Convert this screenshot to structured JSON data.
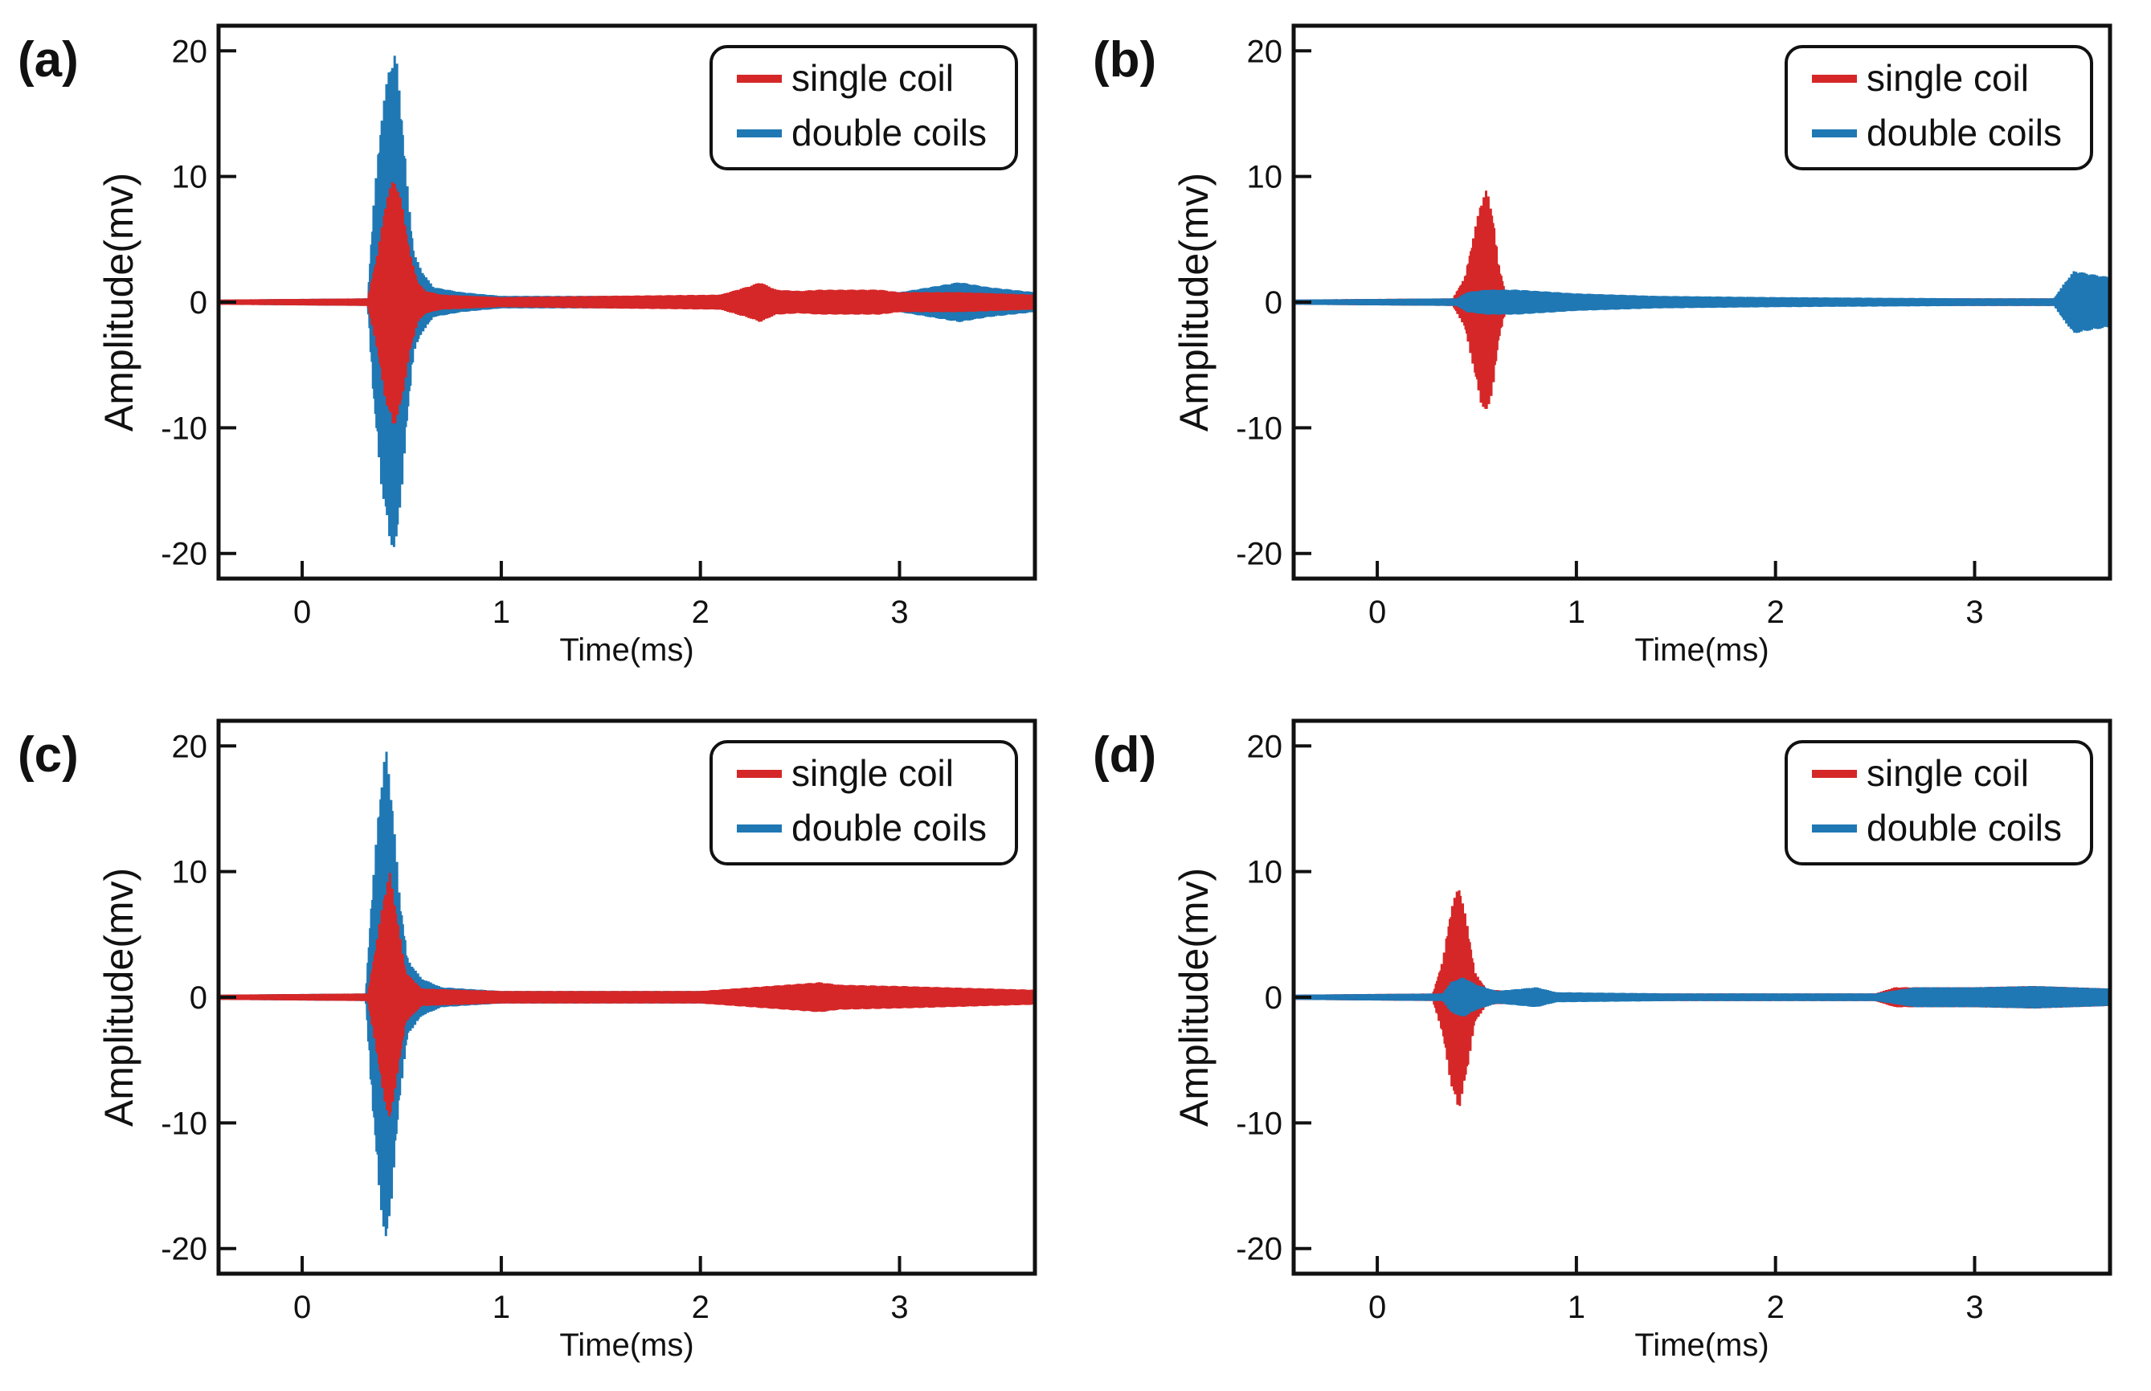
{
  "figure": {
    "panels": [
      {
        "label": "(a)"
      },
      {
        "label": "(b)"
      },
      {
        "label": "(c)"
      },
      {
        "label": "(d)"
      }
    ]
  },
  "chart_data": [
    {
      "type": "line",
      "panel": "(a)",
      "xlabel": "Time(ms)",
      "ylabel": "Amplitude(mv)",
      "xlim": [
        -0.42,
        3.68
      ],
      "ylim": [
        -22,
        22
      ],
      "xticks": [
        "0",
        "1",
        "2",
        "3"
      ],
      "yticks": [
        "20",
        "10",
        "0",
        "-10",
        "-20"
      ],
      "xtick_values": [
        0,
        1,
        2,
        3
      ],
      "ytick_values": [
        20,
        10,
        0,
        -10,
        -20
      ],
      "legend": {
        "position": "top-right",
        "entries": [
          "single coil",
          "double coils"
        ]
      },
      "series": [
        {
          "name": "single coil",
          "color": "#d62728",
          "order": 2,
          "envelope": [
            [
              -0.42,
              0.2
            ],
            [
              0.33,
              0.3
            ],
            [
              0.38,
              4
            ],
            [
              0.42,
              8
            ],
            [
              0.46,
              10
            ],
            [
              0.5,
              8
            ],
            [
              0.54,
              4
            ],
            [
              0.58,
              1.6
            ],
            [
              0.62,
              0.9
            ],
            [
              0.7,
              0.6
            ],
            [
              1.0,
              0.4
            ],
            [
              1.5,
              0.5
            ],
            [
              2.1,
              0.6
            ],
            [
              2.25,
              1.3
            ],
            [
              2.3,
              1.6
            ],
            [
              2.38,
              1.0
            ],
            [
              2.5,
              0.9
            ],
            [
              2.6,
              1.0
            ],
            [
              2.9,
              1.0
            ],
            [
              3.0,
              0.8
            ],
            [
              3.3,
              0.8
            ],
            [
              3.68,
              0.6
            ]
          ]
        },
        {
          "name": "double coils",
          "color": "#1f77b4",
          "order": 1,
          "envelope": [
            [
              -0.42,
              0.2
            ],
            [
              0.33,
              0.3
            ],
            [
              0.36,
              8
            ],
            [
              0.4,
              15
            ],
            [
              0.44,
              19
            ],
            [
              0.47,
              20
            ],
            [
              0.5,
              15
            ],
            [
              0.53,
              9
            ],
            [
              0.56,
              4
            ],
            [
              0.6,
              2.5
            ],
            [
              0.66,
              1.2
            ],
            [
              0.8,
              0.8
            ],
            [
              1.0,
              0.5
            ],
            [
              2.0,
              0.5
            ],
            [
              2.3,
              0.8
            ],
            [
              3.0,
              0.8
            ],
            [
              3.15,
              1.2
            ],
            [
              3.3,
              1.6
            ],
            [
              3.45,
              1.2
            ],
            [
              3.68,
              0.8
            ]
          ]
        }
      ]
    },
    {
      "type": "line",
      "panel": "(b)",
      "xlabel": "Time(ms)",
      "ylabel": "Amplitude(mv)",
      "xlim": [
        -0.42,
        3.68
      ],
      "ylim": [
        -22,
        22
      ],
      "xticks": [
        "0",
        "1",
        "2",
        "3"
      ],
      "yticks": [
        "20",
        "10",
        "0",
        "-10",
        "-20"
      ],
      "xtick_values": [
        0,
        1,
        2,
        3
      ],
      "ytick_values": [
        20,
        10,
        0,
        -10,
        -20
      ],
      "legend": {
        "position": "top-right",
        "entries": [
          "single coil",
          "double coils"
        ]
      },
      "series": [
        {
          "name": "single coil",
          "color": "#d62728",
          "order": 1,
          "envelope": [
            [
              -0.42,
              0.2
            ],
            [
              0.38,
              0.3
            ],
            [
              0.44,
              2
            ],
            [
              0.48,
              5
            ],
            [
              0.52,
              8
            ],
            [
              0.55,
              9
            ],
            [
              0.58,
              7
            ],
            [
              0.61,
              3
            ],
            [
              0.64,
              1
            ],
            [
              0.7,
              0.5
            ],
            [
              1.0,
              0.3
            ],
            [
              2.0,
              0.3
            ],
            [
              3.68,
              0.3
            ]
          ]
        },
        {
          "name": "double coils",
          "color": "#1f77b4",
          "order": 2,
          "envelope": [
            [
              -0.42,
              0.2
            ],
            [
              0.4,
              0.3
            ],
            [
              0.45,
              0.8
            ],
            [
              0.55,
              1.0
            ],
            [
              0.7,
              1.0
            ],
            [
              1.0,
              0.7
            ],
            [
              1.4,
              0.5
            ],
            [
              2.0,
              0.4
            ],
            [
              3.0,
              0.3
            ],
            [
              3.4,
              0.3
            ],
            [
              3.45,
              1.5
            ],
            [
              3.5,
              2.5
            ],
            [
              3.6,
              2.2
            ],
            [
              3.68,
              2.0
            ]
          ]
        }
      ]
    },
    {
      "type": "line",
      "panel": "(c)",
      "xlabel": "Time(ms)",
      "ylabel": "Amplitude(mv)",
      "xlim": [
        -0.42,
        3.68
      ],
      "ylim": [
        -22,
        22
      ],
      "xticks": [
        "0",
        "1",
        "2",
        "3"
      ],
      "yticks": [
        "20",
        "10",
        "0",
        "-10",
        "-20"
      ],
      "xtick_values": [
        0,
        1,
        2,
        3
      ],
      "ytick_values": [
        20,
        10,
        0,
        -10,
        -20
      ],
      "legend": {
        "position": "top-right",
        "entries": [
          "single coil",
          "double coils"
        ]
      },
      "series": [
        {
          "name": "single coil",
          "color": "#d62728",
          "order": 2,
          "envelope": [
            [
              -0.42,
              0.2
            ],
            [
              0.33,
              0.3
            ],
            [
              0.37,
              4
            ],
            [
              0.41,
              8
            ],
            [
              0.44,
              10
            ],
            [
              0.48,
              6
            ],
            [
              0.52,
              2
            ],
            [
              0.6,
              0.7
            ],
            [
              1.0,
              0.5
            ],
            [
              2.0,
              0.5
            ],
            [
              2.6,
              1.2
            ],
            [
              2.7,
              1.0
            ],
            [
              3.0,
              0.9
            ],
            [
              3.68,
              0.6
            ]
          ]
        },
        {
          "name": "double coils",
          "color": "#1f77b4",
          "order": 1,
          "envelope": [
            [
              -0.42,
              0.2
            ],
            [
              0.32,
              0.3
            ],
            [
              0.35,
              8
            ],
            [
              0.39,
              16
            ],
            [
              0.42,
              20
            ],
            [
              0.45,
              16
            ],
            [
              0.49,
              8
            ],
            [
              0.53,
              3
            ],
            [
              0.6,
              1.5
            ],
            [
              0.7,
              0.8
            ],
            [
              1.0,
              0.5
            ],
            [
              3.0,
              0.5
            ],
            [
              3.68,
              0.5
            ]
          ]
        }
      ]
    },
    {
      "type": "line",
      "panel": "(d)",
      "xlabel": "Time(ms)",
      "ylabel": "Amplitude(mv)",
      "xlim": [
        -0.42,
        3.68
      ],
      "ylim": [
        -22,
        22
      ],
      "xticks": [
        "0",
        "1",
        "2",
        "3"
      ],
      "yticks": [
        "20",
        "10",
        "0",
        "-10",
        "-20"
      ],
      "xtick_values": [
        0,
        1,
        2,
        3
      ],
      "ytick_values": [
        20,
        10,
        0,
        -10,
        -20
      ],
      "legend": {
        "position": "top-right",
        "entries": [
          "single coil",
          "double coils"
        ]
      },
      "series": [
        {
          "name": "single coil",
          "color": "#d62728",
          "order": 1,
          "envelope": [
            [
              -0.42,
              0.2
            ],
            [
              0.28,
              0.3
            ],
            [
              0.33,
              3
            ],
            [
              0.37,
              7
            ],
            [
              0.41,
              9
            ],
            [
              0.45,
              6
            ],
            [
              0.49,
              2
            ],
            [
              0.55,
              0.6
            ],
            [
              1.0,
              0.3
            ],
            [
              2.5,
              0.3
            ],
            [
              2.6,
              0.8
            ],
            [
              3.0,
              0.8
            ],
            [
              3.3,
              0.9
            ],
            [
              3.68,
              0.7
            ]
          ]
        },
        {
          "name": "double coils",
          "color": "#1f77b4",
          "order": 2,
          "envelope": [
            [
              -0.42,
              0.2
            ],
            [
              0.33,
              0.3
            ],
            [
              0.37,
              1.2
            ],
            [
              0.43,
              1.6
            ],
            [
              0.5,
              1.0
            ],
            [
              0.6,
              0.5
            ],
            [
              0.8,
              0.8
            ],
            [
              0.9,
              0.4
            ],
            [
              1.5,
              0.3
            ],
            [
              2.5,
              0.3
            ],
            [
              2.7,
              0.8
            ],
            [
              3.0,
              0.8
            ],
            [
              3.3,
              0.9
            ],
            [
              3.68,
              0.7
            ]
          ]
        }
      ]
    }
  ]
}
